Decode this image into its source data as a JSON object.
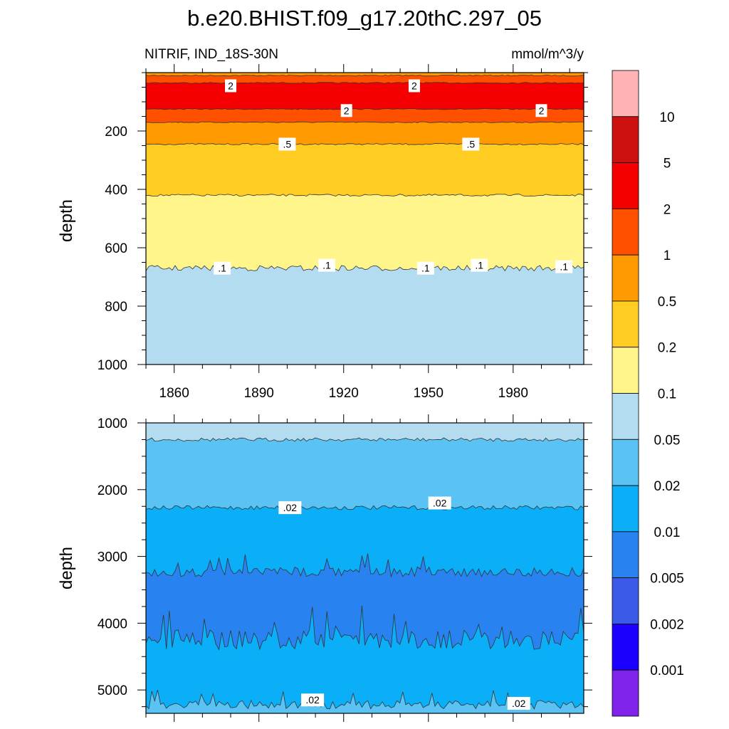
{
  "title": "b.e20.BHIST.f09_g17.20thC.297_05",
  "chart_data": {
    "type": "contour",
    "variable_label": "NITRIF, IND_18S-30N",
    "units_label": "mmol/m^3/y",
    "colorbar": {
      "levels": [
        "0.001",
        "0.002",
        "0.005",
        "0.01",
        "0.02",
        "0.05",
        "0.1",
        "0.2",
        "0.5",
        "1",
        "2",
        "5",
        "10"
      ],
      "colors": [
        "#7f23ea",
        "#1c00ff",
        "#3b5be6",
        "#2882f0",
        "#0aaff8",
        "#5ac3f3",
        "#b4dcf0",
        "#fff58b",
        "#ffcc22",
        "#ff9a00",
        "#ff5000",
        "#f50000",
        "#cc1111",
        "#ffb3b3"
      ]
    },
    "panels": [
      {
        "ylabel": "depth",
        "x_range": [
          1850,
          2005
        ],
        "y_range": [
          0,
          1000
        ],
        "x_ticks": [
          "1860",
          "1890",
          "1920",
          "1950",
          "1980"
        ],
        "y_ticks": [
          "200",
          "400",
          "600",
          "800",
          "1000"
        ],
        "bands": [
          {
            "top": 0,
            "bottom": 10,
            "color": "#ff9a00"
          },
          {
            "top": 10,
            "bottom": 35,
            "color": "#ff5000"
          },
          {
            "top": 35,
            "bottom": 125,
            "color": "#f50000"
          },
          {
            "top": 125,
            "bottom": 170,
            "color": "#ff5000"
          },
          {
            "top": 170,
            "bottom": 245,
            "color": "#ff9a00"
          },
          {
            "top": 245,
            "bottom": 420,
            "color": "#ffcc22"
          },
          {
            "top": 420,
            "bottom": 670,
            "color": "#fff58b"
          },
          {
            "top": 670,
            "bottom": 1000,
            "color": "#b4dcf0"
          }
        ],
        "contour_labels": [
          {
            "text": "2",
            "x": 1880,
            "y": 45
          },
          {
            "text": "2",
            "x": 1945,
            "y": 45
          },
          {
            "text": "2",
            "x": 1921,
            "y": 130
          },
          {
            "text": "2",
            "x": 1990,
            "y": 130
          },
          {
            "text": ".5",
            "x": 1900,
            "y": 245
          },
          {
            "text": ".5",
            "x": 1965,
            "y": 245
          },
          {
            "text": ".1",
            "x": 1877,
            "y": 670
          },
          {
            "text": ".1",
            "x": 1914,
            "y": 660
          },
          {
            "text": ".1",
            "x": 1949,
            "y": 670
          },
          {
            "text": ".1",
            "x": 1968,
            "y": 660
          },
          {
            "text": ".1",
            "x": 1998,
            "y": 665
          }
        ]
      },
      {
        "ylabel": "depth",
        "x_range": [
          1850,
          2005
        ],
        "y_range": [
          1000,
          5350
        ],
        "y_ticks": [
          "1000",
          "2000",
          "3000",
          "4000",
          "5000"
        ],
        "bands": [
          {
            "top": 1000,
            "bottom": 1250,
            "color": "#b4dcf0"
          },
          {
            "top": 1250,
            "bottom": 2270,
            "color": "#5ac3f3"
          },
          {
            "top": 2270,
            "bottom": 3230,
            "color": "#0aaff8"
          },
          {
            "top": 3230,
            "bottom": 4250,
            "color": "#2882f0"
          },
          {
            "top": 4250,
            "bottom": 5220,
            "color": "#0aaff8"
          },
          {
            "top": 5220,
            "bottom": 5350,
            "color": "#5ac3f3"
          }
        ],
        "contour_labels": [
          {
            "text": ".02",
            "x": 1901,
            "y": 2270
          },
          {
            "text": ".02",
            "x": 1954,
            "y": 2200
          },
          {
            "text": ".02",
            "x": 1909,
            "y": 5150
          },
          {
            "text": ".02",
            "x": 1982,
            "y": 5200
          }
        ]
      }
    ]
  }
}
